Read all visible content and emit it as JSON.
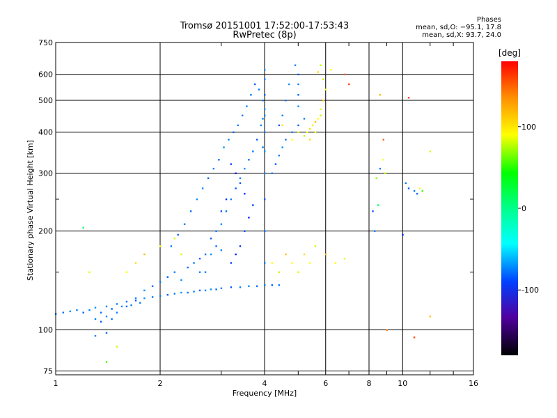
{
  "chart_data": {
    "type": "scatter",
    "title": "Tromsø 20151001 17:52:00-17:53:43",
    "subtitle": "RwPretec (8p)",
    "xlabel": "Frequency [MHz]",
    "ylabel": "Stationary phase Virtual Height [km]",
    "xscale": "log",
    "yscale": "log",
    "xlim": [
      1,
      16
    ],
    "ylim": [
      73,
      750
    ],
    "x_ticks": [
      1,
      2,
      4,
      6,
      8,
      10,
      16
    ],
    "x_tick_labels": [
      "1",
      "2",
      "4",
      "6",
      "8",
      "10",
      "16"
    ],
    "y_ticks": [
      75,
      100,
      200,
      300,
      400,
      500,
      600,
      750
    ],
    "y_tick_labels": [
      "75",
      "100",
      "200",
      "300",
      "400",
      "500",
      "600",
      "750"
    ],
    "grid": true,
    "phase_info": {
      "heading": "Phases",
      "line1": "mean, sd,O: −95.1, 17.8",
      "line2": "mean, sd,X:  93.7, 24.0"
    },
    "colorbar": {
      "label": "[deg]",
      "range": [
        -180,
        180
      ],
      "ticks": [
        100,
        0,
        -100
      ],
      "tick_labels": [
        "100",
        "0",
        "-100"
      ]
    },
    "series": [
      {
        "colorscale": "phase",
        "points": [
          [
            1.0,
            112,
            -100
          ],
          [
            1.05,
            113,
            -105
          ],
          [
            1.1,
            114,
            -95
          ],
          [
            1.15,
            115,
            -100
          ],
          [
            1.2,
            113,
            -110
          ],
          [
            1.25,
            115,
            -100
          ],
          [
            1.3,
            117,
            -95
          ],
          [
            1.35,
            113,
            -105
          ],
          [
            1.4,
            118,
            -100
          ],
          [
            1.45,
            116,
            -110
          ],
          [
            1.5,
            120,
            -100
          ],
          [
            1.55,
            118,
            -95
          ],
          [
            1.6,
            122,
            -105
          ],
          [
            1.65,
            119,
            -100
          ],
          [
            1.7,
            123,
            -110
          ],
          [
            1.75,
            121,
            -100
          ],
          [
            1.8,
            125,
            -95
          ],
          [
            1.9,
            126,
            -105
          ],
          [
            2.0,
            127,
            -100
          ],
          [
            2.1,
            128,
            -110
          ],
          [
            2.2,
            129,
            -100
          ],
          [
            2.3,
            130,
            -95
          ],
          [
            2.4,
            130,
            -105
          ],
          [
            2.5,
            131,
            -100
          ],
          [
            2.6,
            132,
            -110
          ],
          [
            2.7,
            132,
            -100
          ],
          [
            2.8,
            133,
            -95
          ],
          [
            2.9,
            133,
            -105
          ],
          [
            3.0,
            134,
            -100
          ],
          [
            3.2,
            135,
            -110
          ],
          [
            3.4,
            135,
            -100
          ],
          [
            3.6,
            136,
            -95
          ],
          [
            3.8,
            136,
            -105
          ],
          [
            4.0,
            137,
            -100
          ],
          [
            4.2,
            137,
            -110
          ],
          [
            4.4,
            137,
            -100
          ],
          [
            1.3,
            108,
            -100
          ],
          [
            1.35,
            106,
            -110
          ],
          [
            1.4,
            110,
            -95
          ],
          [
            1.45,
            108,
            -105
          ],
          [
            1.5,
            113,
            -100
          ],
          [
            1.6,
            118,
            -110
          ],
          [
            1.7,
            125,
            -100
          ],
          [
            1.8,
            132,
            -95
          ],
          [
            1.9,
            136,
            -105
          ],
          [
            2.0,
            140,
            -100
          ],
          [
            2.1,
            145,
            -110
          ],
          [
            2.2,
            150,
            -100
          ],
          [
            2.3,
            142,
            -95
          ],
          [
            2.4,
            155,
            -105
          ],
          [
            2.5,
            160,
            -100
          ],
          [
            2.6,
            165,
            -110
          ],
          [
            2.7,
            150,
            -100
          ],
          [
            2.8,
            170,
            -95
          ],
          [
            2.9,
            180,
            -105
          ],
          [
            3.0,
            175,
            -100
          ],
          [
            2.6,
            150,
            -100
          ],
          [
            2.7,
            170,
            -105
          ],
          [
            2.8,
            190,
            -110
          ],
          [
            2.9,
            200,
            -100
          ],
          [
            3.0,
            210,
            -95
          ],
          [
            3.1,
            230,
            -105
          ],
          [
            3.2,
            250,
            -100
          ],
          [
            3.3,
            270,
            -110
          ],
          [
            3.4,
            290,
            -100
          ],
          [
            3.5,
            310,
            -95
          ],
          [
            3.6,
            330,
            -105
          ],
          [
            3.7,
            350,
            -100
          ],
          [
            3.8,
            380,
            -110
          ],
          [
            3.9,
            420,
            -100
          ],
          [
            4.0,
            470,
            -95
          ],
          [
            3.95,
            500,
            -105
          ],
          [
            3.85,
            540,
            -100
          ],
          [
            3.75,
            560,
            -110
          ],
          [
            3.65,
            520,
            -100
          ],
          [
            3.55,
            480,
            -95
          ],
          [
            3.45,
            450,
            -105
          ],
          [
            3.35,
            420,
            -100
          ],
          [
            3.25,
            400,
            -110
          ],
          [
            3.15,
            380,
            -100
          ],
          [
            3.05,
            360,
            -95
          ],
          [
            2.95,
            330,
            -105
          ],
          [
            2.85,
            310,
            -100
          ],
          [
            2.75,
            290,
            -110
          ],
          [
            2.65,
            270,
            -100
          ],
          [
            2.55,
            250,
            -95
          ],
          [
            2.45,
            230,
            -105
          ],
          [
            2.35,
            210,
            -100
          ],
          [
            2.25,
            195,
            -110
          ],
          [
            2.15,
            180,
            -100
          ],
          [
            3.2,
            160,
            -120
          ],
          [
            3.3,
            170,
            -130
          ],
          [
            3.4,
            180,
            -125
          ],
          [
            3.5,
            200,
            -115
          ],
          [
            3.6,
            220,
            -130
          ],
          [
            3.7,
            240,
            -120
          ],
          [
            3.5,
            260,
            -125
          ],
          [
            3.4,
            280,
            -115
          ],
          [
            3.3,
            300,
            -130
          ],
          [
            3.2,
            320,
            -120
          ],
          [
            3.1,
            250,
            -125
          ],
          [
            3.0,
            230,
            -115
          ],
          [
            4.0,
            160,
            -100
          ],
          [
            4.0,
            200,
            -105
          ],
          [
            4.0,
            250,
            -110
          ],
          [
            4.0,
            300,
            -100
          ],
          [
            4.0,
            350,
            -95
          ],
          [
            4.0,
            400,
            -105
          ],
          [
            4.0,
            450,
            -100
          ],
          [
            4.0,
            520,
            -110
          ],
          [
            4.0,
            580,
            -100
          ],
          [
            4.0,
            620,
            -95
          ],
          [
            3.95,
            360,
            -105
          ],
          [
            3.95,
            440,
            -100
          ],
          [
            4.2,
            300,
            -100
          ],
          [
            4.3,
            320,
            -110
          ],
          [
            4.4,
            340,
            -100
          ],
          [
            4.5,
            360,
            -95
          ],
          [
            4.6,
            380,
            -105
          ],
          [
            4.8,
            400,
            -100
          ],
          [
            5.0,
            420,
            -110
          ],
          [
            5.2,
            440,
            -100
          ],
          [
            5.0,
            480,
            -95
          ],
          [
            5.0,
            520,
            -105
          ],
          [
            5.0,
            560,
            -100
          ],
          [
            5.0,
            600,
            -110
          ],
          [
            4.9,
            640,
            -100
          ],
          [
            4.7,
            560,
            -95
          ],
          [
            4.6,
            500,
            -105
          ],
          [
            4.5,
            450,
            -100
          ],
          [
            4.4,
            420,
            -110
          ],
          [
            5.2,
            390,
            80
          ],
          [
            5.3,
            400,
            100
          ],
          [
            5.4,
            410,
            110
          ],
          [
            5.5,
            420,
            90
          ],
          [
            5.6,
            430,
            120
          ],
          [
            5.7,
            440,
            100
          ],
          [
            5.8,
            450,
            80
          ],
          [
            5.4,
            380,
            110
          ],
          [
            5.6,
            400,
            100
          ],
          [
            5.8,
            470,
            90
          ],
          [
            5.9,
            500,
            120
          ],
          [
            6.0,
            540,
            100
          ],
          [
            5.9,
            580,
            80
          ],
          [
            5.7,
            610,
            110
          ],
          [
            4.8,
            380,
            100
          ],
          [
            5.0,
            400,
            90
          ],
          [
            4.5,
            420,
            110
          ],
          [
            4.2,
            160,
            100
          ],
          [
            4.4,
            150,
            80
          ],
          [
            4.6,
            170,
            120
          ],
          [
            4.8,
            160,
            100
          ],
          [
            5.0,
            150,
            90
          ],
          [
            5.2,
            170,
            110
          ],
          [
            5.4,
            160,
            100
          ],
          [
            5.6,
            180,
            80
          ],
          [
            6.0,
            170,
            120
          ],
          [
            6.4,
            160,
            100
          ],
          [
            6.8,
            165,
            90
          ],
          [
            1.3,
            96,
            -100
          ],
          [
            1.4,
            98,
            -105
          ],
          [
            1.5,
            89,
            80
          ],
          [
            1.4,
            80,
            40
          ],
          [
            1.2,
            205,
            -10
          ],
          [
            1.25,
            150,
            90
          ],
          [
            1.6,
            150,
            100
          ],
          [
            1.8,
            170,
            120
          ],
          [
            2.0,
            180,
            100
          ],
          [
            2.2,
            190,
            80
          ],
          [
            2.3,
            170,
            90
          ],
          [
            1.7,
            160,
            110
          ],
          [
            8.4,
            290,
            60
          ],
          [
            8.6,
            310,
            -100
          ],
          [
            8.8,
            330,
            100
          ],
          [
            8.9,
            300,
            80
          ],
          [
            8.5,
            240,
            -10
          ],
          [
            8.3,
            200,
            -100
          ],
          [
            8.2,
            230,
            -110
          ],
          [
            8.8,
            380,
            150
          ],
          [
            8.6,
            520,
            120
          ],
          [
            10.2,
            280,
            -100
          ],
          [
            10.4,
            270,
            -110
          ],
          [
            10.8,
            265,
            -100
          ],
          [
            11.0,
            260,
            -105
          ],
          [
            11.2,
            270,
            100
          ],
          [
            11.4,
            265,
            40
          ],
          [
            10.4,
            510,
            160
          ],
          [
            10.0,
            195,
            -130
          ],
          [
            9.0,
            100,
            140
          ],
          [
            10.8,
            95,
            160
          ],
          [
            12.0,
            110,
            120
          ],
          [
            12.0,
            350,
            90
          ],
          [
            7.0,
            560,
            160
          ],
          [
            6.8,
            600,
            150
          ],
          [
            6.2,
            620,
            100
          ],
          [
            5.8,
            640,
            80
          ]
        ]
      }
    ]
  }
}
